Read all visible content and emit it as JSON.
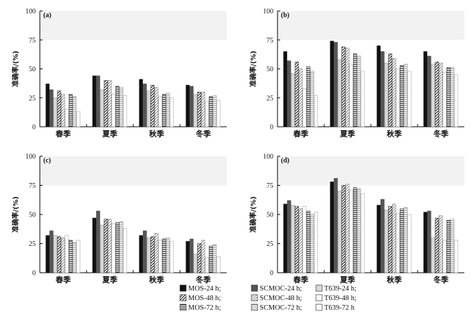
{
  "chart_data": [
    {
      "panel": "(a)",
      "type": "bar",
      "ylabel": "准确率/(%)",
      "ylim": [
        0,
        100
      ],
      "yticks": [
        "0",
        "25",
        "50",
        "75",
        "100"
      ],
      "categories": [
        "春季",
        "夏季",
        "秋季",
        "冬季"
      ],
      "series": [
        {
          "name": "MOS-24 h;",
          "values": [
            37,
            44,
            41,
            36
          ]
        },
        {
          "name": "SCMOC-24 h;",
          "values": [
            32,
            44,
            37,
            35
          ]
        },
        {
          "name": "T639-24 h;",
          "values": [
            25,
            32,
            31,
            28
          ]
        },
        {
          "name": "MOS-48 h;",
          "values": [
            31,
            40,
            36,
            30
          ]
        },
        {
          "name": "SCMOC-48 h;",
          "values": [
            28,
            40,
            34,
            30
          ]
        },
        {
          "name": "T639-48 h;",
          "values": [
            15,
            28,
            26,
            22
          ]
        },
        {
          "name": "MOS-72 h;",
          "values": [
            28,
            35,
            28,
            26
          ]
        },
        {
          "name": "SCMOC-72 h;",
          "values": [
            26,
            34,
            29,
            27
          ]
        },
        {
          "name": "T639-72 h",
          "values": [
            13,
            27,
            25,
            23
          ]
        }
      ]
    },
    {
      "panel": "(b)",
      "type": "bar",
      "ylabel": "准确率/(%)",
      "ylim": [
        0,
        100
      ],
      "yticks": [
        "0",
        "25",
        "50",
        "75",
        "100"
      ],
      "categories": [
        "春季",
        "夏季",
        "秋季",
        "冬季"
      ],
      "series": [
        {
          "name": "MOS-24 h;",
          "values": [
            65,
            74,
            70,
            65
          ]
        },
        {
          "name": "SCMOC-24 h;",
          "values": [
            57,
            73,
            65,
            61
          ]
        },
        {
          "name": "T639-24 h;",
          "values": [
            46,
            58,
            55,
            54
          ]
        },
        {
          "name": "MOS-48 h;",
          "values": [
            56,
            69,
            63,
            56
          ]
        },
        {
          "name": "SCMOC-48 h;",
          "values": [
            50,
            68,
            59,
            55
          ]
        },
        {
          "name": "T639-48 h;",
          "values": [
            33,
            54,
            50,
            47
          ]
        },
        {
          "name": "MOS-72 h;",
          "values": [
            52,
            63,
            53,
            51
          ]
        },
        {
          "name": "SCMOC-72 h;",
          "values": [
            48,
            61,
            54,
            51
          ]
        },
        {
          "name": "T639-72 h",
          "values": [
            27,
            48,
            48,
            45
          ]
        }
      ]
    },
    {
      "panel": "(c)",
      "type": "bar",
      "ylabel": "准确率/(%)",
      "ylim": [
        0,
        100
      ],
      "yticks": [
        "0",
        "25",
        "50",
        "75",
        "100"
      ],
      "categories": [
        "春季",
        "夏季",
        "秋季",
        "冬季"
      ],
      "series": [
        {
          "name": "MOS-24 h;",
          "values": [
            32,
            47,
            32,
            27
          ]
        },
        {
          "name": "SCMOC-24 h;",
          "values": [
            36,
            53,
            36,
            29
          ]
        },
        {
          "name": "T639-24 h;",
          "values": [
            32,
            41,
            30,
            16
          ]
        },
        {
          "name": "MOS-48 h;",
          "values": [
            31,
            46,
            31,
            25
          ]
        },
        {
          "name": "SCMOC-48 h;",
          "values": [
            30,
            46,
            34,
            28
          ]
        },
        {
          "name": "T639-48 h;",
          "values": [
            32,
            42,
            28,
            13
          ]
        },
        {
          "name": "MOS-72 h;",
          "values": [
            28,
            43,
            29,
            23
          ]
        },
        {
          "name": "SCMOC-72 h;",
          "values": [
            26,
            44,
            30,
            24
          ]
        },
        {
          "name": "T639-72 h",
          "values": [
            28,
            38,
            27,
            14
          ]
        }
      ]
    },
    {
      "panel": "(d)",
      "type": "bar",
      "ylabel": "准确率/(%)",
      "ylim": [
        0,
        100
      ],
      "yticks": [
        "0",
        "25",
        "50",
        "75",
        "100"
      ],
      "categories": [
        "春季",
        "夏季",
        "秋季",
        "冬季"
      ],
      "series": [
        {
          "name": "MOS-24 h;",
          "values": [
            59,
            78,
            58,
            52
          ]
        },
        {
          "name": "SCMOC-24 h;",
          "values": [
            62,
            81,
            63,
            53
          ]
        },
        {
          "name": "T639-24 h;",
          "values": [
            58,
            70,
            54,
            30
          ]
        },
        {
          "name": "MOS-48 h;",
          "values": [
            57,
            75,
            57,
            47
          ]
        },
        {
          "name": "SCMOC-48 h;",
          "values": [
            55,
            76,
            59,
            49
          ]
        },
        {
          "name": "T639-48 h;",
          "values": [
            57,
            71,
            51,
            28
          ]
        },
        {
          "name": "MOS-72 h;",
          "values": [
            53,
            73,
            55,
            45
          ]
        },
        {
          "name": "SCMOC-72 h;",
          "values": [
            50,
            72,
            56,
            46
          ]
        },
        {
          "name": "T639-72 h",
          "values": [
            52,
            68,
            50,
            28
          ]
        }
      ]
    }
  ],
  "legend": {
    "items": [
      {
        "label": "MOS-24 h;",
        "fill": "solid-black"
      },
      {
        "label": "SCMOC-24 h;",
        "fill": "solid-dark-gray"
      },
      {
        "label": "T639-24 h;",
        "fill": "solid-light-gray"
      },
      {
        "label": "MOS-48 h;",
        "fill": "diagonal-hatch-black"
      },
      {
        "label": "SCMOC-48 h;",
        "fill": "diagonal-hatch-gray"
      },
      {
        "label": "T639-48 h;",
        "fill": "white"
      },
      {
        "label": "MOS-72 h;",
        "fill": "horizontal-lines-black"
      },
      {
        "label": "SCMOC-72 h;",
        "fill": "horizontal-lines-gray"
      },
      {
        "label": "T639-72 h",
        "fill": "white"
      }
    ]
  },
  "colors": {
    "black": "#111111",
    "dark_gray": "#555555",
    "light_gray": "#d9d9d9",
    "hatch_gray": "#888888",
    "axis": "#000000"
  }
}
